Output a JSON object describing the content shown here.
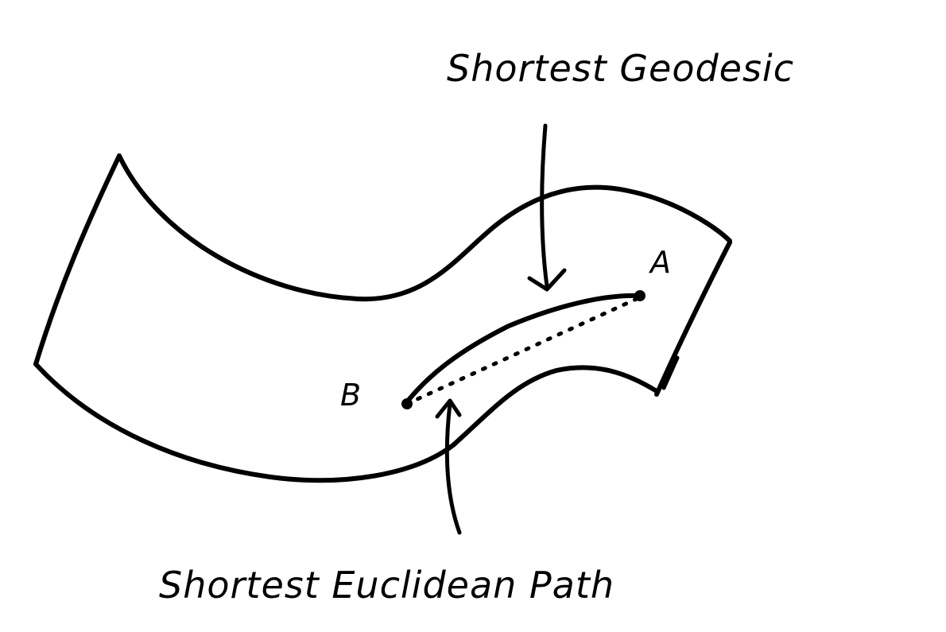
{
  "labels": {
    "geodesic": "Shortest Geodesic",
    "euclidean": "Shortest Euclidean Path",
    "point_a": "A",
    "point_b": "B"
  },
  "colors": {
    "ink": "#000000",
    "background": "#ffffff"
  }
}
